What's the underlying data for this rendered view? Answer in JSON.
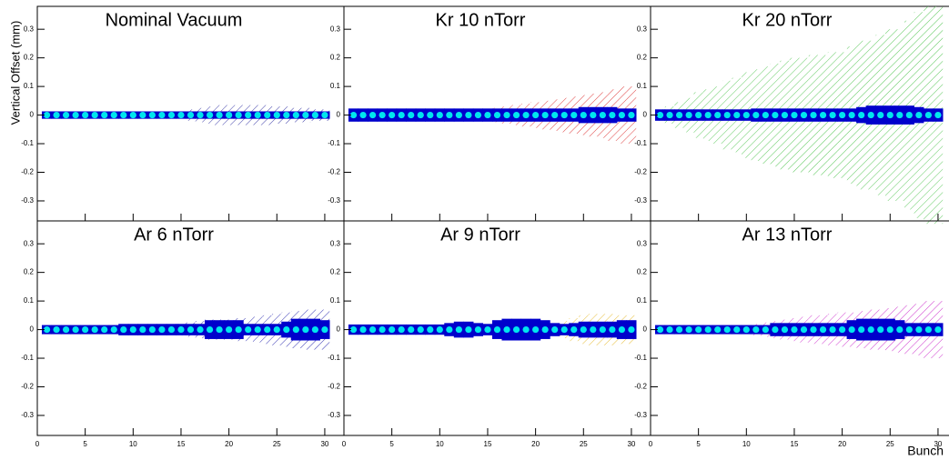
{
  "chart_data": [
    {
      "type": "band",
      "title": "Nominal Vacuum",
      "y_label": "Vertical Offset (mm)",
      "x": [
        1,
        2,
        3,
        4,
        5,
        6,
        7,
        8,
        9,
        10,
        11,
        12,
        13,
        14,
        15,
        16,
        17,
        18,
        19,
        20,
        21,
        22,
        23,
        24,
        25,
        26,
        27,
        28,
        29,
        30
      ],
      "values": [
        0,
        0,
        0,
        0,
        0,
        0,
        0,
        0,
        0,
        0,
        0,
        0,
        0,
        0,
        0,
        0,
        0,
        0,
        0,
        0,
        0,
        0,
        0,
        0,
        0,
        0,
        0,
        0,
        0,
        0
      ],
      "error": [
        0.005,
        0.005,
        0.005,
        0.005,
        0.005,
        0.005,
        0.005,
        0.005,
        0.005,
        0.005,
        0.005,
        0.005,
        0.005,
        0.005,
        0.005,
        0.005,
        0.005,
        0.005,
        0.005,
        0.005,
        0.005,
        0.005,
        0.005,
        0.005,
        0.005,
        0.005,
        0.005,
        0.005,
        0.005,
        0.005
      ],
      "spread": [
        0.005,
        0.005,
        0.005,
        0.005,
        0.005,
        0.005,
        0.005,
        0.005,
        0.005,
        0.005,
        0.005,
        0.005,
        0.005,
        0.005,
        0.01,
        0.02,
        0.025,
        0.03,
        0.035,
        0.035,
        0.035,
        0.035,
        0.035,
        0.035,
        0.03,
        0.03,
        0.025,
        0.025,
        0.02,
        0.02
      ],
      "color": "#3a3aa8",
      "band_color": "#0000cc",
      "marker_color": "#00e5ee",
      "xlim": [
        0,
        32
      ],
      "ylim": [
        -0.37,
        0.38
      ],
      "xticks": [
        0,
        5,
        10,
        15,
        20,
        25,
        30
      ],
      "yticks": [
        -0.3,
        -0.2,
        -0.1,
        0,
        0.1,
        0.2,
        0.3
      ]
    },
    {
      "type": "band",
      "title": "Kr 10 nTorr",
      "x": [
        1,
        2,
        3,
        4,
        5,
        6,
        7,
        8,
        9,
        10,
        11,
        12,
        13,
        14,
        15,
        16,
        17,
        18,
        19,
        20,
        21,
        22,
        23,
        24,
        25,
        26,
        27,
        28,
        29,
        30
      ],
      "values": [
        0,
        0,
        0,
        0,
        0,
        0,
        0,
        0,
        0,
        0,
        0,
        0,
        0,
        0,
        0,
        0,
        0,
        0,
        0,
        0,
        0,
        0,
        0,
        0,
        0,
        0,
        0,
        0,
        0,
        0
      ],
      "error": [
        0.015,
        0.015,
        0.015,
        0.015,
        0.015,
        0.015,
        0.015,
        0.015,
        0.015,
        0.015,
        0.015,
        0.015,
        0.015,
        0.015,
        0.015,
        0.015,
        0.015,
        0.015,
        0.015,
        0.015,
        0.015,
        0.015,
        0.015,
        0.015,
        0.02,
        0.02,
        0.02,
        0.02,
        0.015,
        0.015
      ],
      "spread": [
        0.015,
        0.015,
        0.015,
        0.015,
        0.015,
        0.015,
        0.015,
        0.015,
        0.015,
        0.015,
        0.015,
        0.015,
        0.015,
        0.015,
        0.02,
        0.025,
        0.03,
        0.035,
        0.04,
        0.045,
        0.05,
        0.055,
        0.06,
        0.065,
        0.07,
        0.075,
        0.08,
        0.09,
        0.1,
        0.1
      ],
      "color": "#e04848",
      "band_color": "#0000cc",
      "marker_color": "#00e5ee",
      "xlim": [
        0,
        32
      ],
      "ylim": [
        -0.37,
        0.38
      ],
      "xticks": [
        0,
        5,
        10,
        15,
        20,
        25,
        30
      ],
      "yticks": [
        -0.3,
        -0.2,
        -0.1,
        0,
        0.1,
        0.2,
        0.3
      ]
    },
    {
      "type": "band",
      "title": "Kr 20 nTorr",
      "x": [
        1,
        2,
        3,
        4,
        5,
        6,
        7,
        8,
        9,
        10,
        11,
        12,
        13,
        14,
        15,
        16,
        17,
        18,
        19,
        20,
        21,
        22,
        23,
        24,
        25,
        26,
        27,
        28,
        29,
        30
      ],
      "values": [
        0,
        0,
        0,
        0,
        0,
        0,
        0,
        0,
        0,
        0,
        0,
        0,
        0,
        0,
        0,
        0,
        0,
        0,
        0,
        0,
        0,
        0,
        0,
        0,
        0,
        0,
        0,
        0,
        0,
        0
      ],
      "error": [
        0.012,
        0.012,
        0.012,
        0.012,
        0.012,
        0.012,
        0.012,
        0.012,
        0.012,
        0.012,
        0.015,
        0.015,
        0.015,
        0.015,
        0.015,
        0.015,
        0.015,
        0.015,
        0.015,
        0.015,
        0.015,
        0.02,
        0.025,
        0.025,
        0.025,
        0.025,
        0.025,
        0.02,
        0.015,
        0.015
      ],
      "spread": [
        0.02,
        0.03,
        0.045,
        0.06,
        0.08,
        0.09,
        0.1,
        0.12,
        0.13,
        0.15,
        0.16,
        0.17,
        0.18,
        0.19,
        0.2,
        0.2,
        0.21,
        0.21,
        0.22,
        0.22,
        0.24,
        0.26,
        0.26,
        0.28,
        0.3,
        0.3,
        0.33,
        0.36,
        0.38,
        0.38
      ],
      "color": "#5cc85c",
      "band_color": "#0000cc",
      "marker_color": "#00e5ee",
      "xlim": [
        0,
        32
      ],
      "ylim": [
        -0.37,
        0.38
      ],
      "xticks": [
        0,
        5,
        10,
        15,
        20,
        25,
        30
      ],
      "yticks": [
        -0.3,
        -0.2,
        -0.1,
        0,
        0.1,
        0.2,
        0.3
      ]
    },
    {
      "type": "band",
      "title": "Ar 6 nTorr",
      "x": [
        1,
        2,
        3,
        4,
        5,
        6,
        7,
        8,
        9,
        10,
        11,
        12,
        13,
        14,
        15,
        16,
        17,
        18,
        19,
        20,
        21,
        22,
        23,
        24,
        25,
        26,
        27,
        28,
        29,
        30
      ],
      "values": [
        0,
        0,
        0,
        0,
        0,
        0,
        0,
        0,
        0,
        0,
        0,
        0,
        0,
        0,
        0,
        0,
        0,
        0,
        0,
        0,
        0,
        0,
        0,
        0,
        0,
        0,
        0,
        0,
        0,
        0
      ],
      "error": [
        0.008,
        0.008,
        0.008,
        0.008,
        0.008,
        0.008,
        0.008,
        0.008,
        0.012,
        0.012,
        0.012,
        0.012,
        0.012,
        0.012,
        0.012,
        0.012,
        0.012,
        0.025,
        0.025,
        0.025,
        0.025,
        0.012,
        0.012,
        0.012,
        0.012,
        0.02,
        0.03,
        0.03,
        0.03,
        0.025
      ],
      "spread": [
        0.008,
        0.008,
        0.008,
        0.008,
        0.008,
        0.008,
        0.008,
        0.008,
        0.008,
        0.008,
        0.008,
        0.008,
        0.012,
        0.015,
        0.02,
        0.025,
        0.03,
        0.035,
        0.035,
        0.035,
        0.04,
        0.04,
        0.045,
        0.05,
        0.055,
        0.06,
        0.065,
        0.07,
        0.07,
        0.07
      ],
      "color": "#2e2eb0",
      "band_color": "#0000cc",
      "marker_color": "#00e5ee",
      "xlim": [
        0,
        32
      ],
      "ylim": [
        -0.37,
        0.38
      ],
      "xticks": [
        0,
        5,
        10,
        15,
        20,
        25,
        30
      ],
      "yticks": [
        -0.3,
        -0.2,
        -0.1,
        0,
        0.1,
        0.2,
        0.3
      ]
    },
    {
      "type": "band",
      "title": "Ar 9 nTorr",
      "x": [
        1,
        2,
        3,
        4,
        5,
        6,
        7,
        8,
        9,
        10,
        11,
        12,
        13,
        14,
        15,
        16,
        17,
        18,
        19,
        20,
        21,
        22,
        23,
        24,
        25,
        26,
        27,
        28,
        29,
        30
      ],
      "values": [
        0,
        0,
        0,
        0,
        0,
        0,
        0,
        0,
        0,
        0,
        0,
        0,
        0,
        0,
        0,
        0,
        0,
        0,
        0,
        0,
        0,
        0,
        0,
        0,
        0,
        0,
        0,
        0,
        0,
        0
      ],
      "error": [
        0.01,
        0.01,
        0.01,
        0.01,
        0.01,
        0.01,
        0.01,
        0.01,
        0.01,
        0.01,
        0.015,
        0.02,
        0.02,
        0.015,
        0.012,
        0.025,
        0.03,
        0.03,
        0.03,
        0.03,
        0.025,
        0.015,
        0.012,
        0.015,
        0.02,
        0.02,
        0.02,
        0.02,
        0.025,
        0.025
      ],
      "spread": [
        0.01,
        0.01,
        0.01,
        0.01,
        0.01,
        0.01,
        0.01,
        0.01,
        0.01,
        0.01,
        0.01,
        0.01,
        0.01,
        0.01,
        0.01,
        0.01,
        0.01,
        0.01,
        0.01,
        0.01,
        0.01,
        0.02,
        0.03,
        0.04,
        0.05,
        0.055,
        0.055,
        0.055,
        0.05,
        0.05
      ],
      "color": "#e8c040",
      "band_color": "#0000cc",
      "marker_color": "#00e5ee",
      "xlim": [
        0,
        32
      ],
      "ylim": [
        -0.37,
        0.38
      ],
      "xticks": [
        0,
        5,
        10,
        15,
        20,
        25,
        30
      ],
      "yticks": [
        -0.3,
        -0.2,
        -0.1,
        0,
        0.1,
        0.2,
        0.3
      ]
    },
    {
      "type": "band",
      "title": "Ar 13 nTorr",
      "x_label": "Bunch",
      "x": [
        1,
        2,
        3,
        4,
        5,
        6,
        7,
        8,
        9,
        10,
        11,
        12,
        13,
        14,
        15,
        16,
        17,
        18,
        19,
        20,
        21,
        22,
        23,
        24,
        25,
        26,
        27,
        28,
        29,
        30
      ],
      "values": [
        0,
        0,
        0,
        0,
        0,
        0,
        0,
        0,
        0,
        0,
        0,
        0,
        0,
        0,
        0,
        0,
        0,
        0,
        0,
        0,
        0,
        0,
        0,
        0,
        0,
        0,
        0,
        0,
        0,
        0
      ],
      "error": [
        0.008,
        0.008,
        0.008,
        0.008,
        0.008,
        0.008,
        0.008,
        0.008,
        0.008,
        0.008,
        0.008,
        0.008,
        0.015,
        0.015,
        0.015,
        0.015,
        0.015,
        0.015,
        0.015,
        0.015,
        0.025,
        0.03,
        0.03,
        0.03,
        0.03,
        0.025,
        0.015,
        0.015,
        0.015,
        0.015
      ],
      "spread": [
        0.008,
        0.008,
        0.008,
        0.008,
        0.008,
        0.008,
        0.008,
        0.008,
        0.008,
        0.012,
        0.02,
        0.025,
        0.03,
        0.035,
        0.04,
        0.045,
        0.05,
        0.05,
        0.055,
        0.06,
        0.06,
        0.065,
        0.07,
        0.07,
        0.075,
        0.08,
        0.085,
        0.09,
        0.1,
        0.1
      ],
      "color": "#d040d0",
      "band_color": "#0000cc",
      "marker_color": "#00e5ee",
      "xlim": [
        0,
        32
      ],
      "ylim": [
        -0.37,
        0.38
      ],
      "xticks": [
        0,
        5,
        10,
        15,
        20,
        25,
        30
      ],
      "yticks": [
        -0.3,
        -0.2,
        -0.1,
        0,
        0.1,
        0.2,
        0.3
      ]
    }
  ]
}
